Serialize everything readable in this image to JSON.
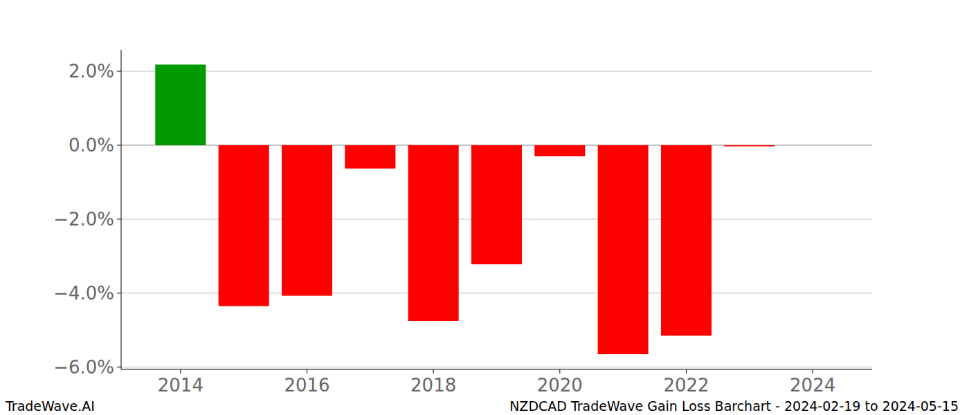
{
  "chart_data": {
    "type": "bar",
    "title": "NZDCAD TradeWave Gain Loss Barchart - 2024-02-19 to 2024-05-15",
    "annotations": [
      "TradeWave.AI"
    ],
    "x": [
      2014,
      2015,
      2016,
      2017,
      2018,
      2019,
      2020,
      2021,
      2022,
      2023
    ],
    "values": [
      2.18,
      -4.35,
      -4.07,
      -0.63,
      -4.75,
      -3.22,
      -0.3,
      -5.65,
      -5.15,
      -0.03
    ],
    "colors": [
      "#009900",
      "#ff0000",
      "#ff0000",
      "#ff0000",
      "#ff0000",
      "#ff0000",
      "#ff0000",
      "#ff0000",
      "#ff0000",
      "#ff0000"
    ],
    "xlim": [
      2013.06,
      2024.94
    ],
    "xticks": [
      2014,
      2016,
      2018,
      2020,
      2022,
      2024
    ],
    "ylim": [
      -6.06,
      2.58
    ],
    "yticks": [
      {
        "value": -6,
        "label": "−6.0%"
      },
      {
        "value": -4,
        "label": "−4.0%"
      },
      {
        "value": -2,
        "label": "−2.0%"
      },
      {
        "value": 0,
        "label": "0.0%"
      },
      {
        "value": 2,
        "label": "2.0%"
      }
    ],
    "grid": true
  }
}
